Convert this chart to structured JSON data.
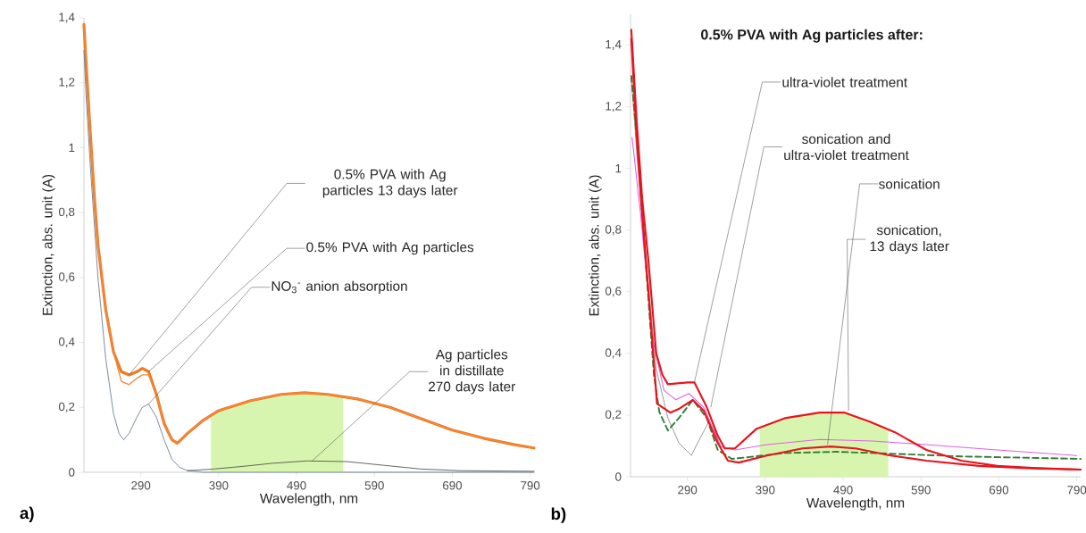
{
  "chart_data": [
    {
      "type": "line",
      "xlabel": "Wavelength, nm",
      "ylabel": "Extinction, abs. unit (A)",
      "xlim": [
        217,
        795
      ],
      "ylim": [
        0,
        1.4
      ],
      "xticks": [
        290,
        390,
        490,
        590,
        690,
        790
      ],
      "yticks": [
        0,
        {
          "value": 0.2,
          "label": "0,2"
        },
        {
          "value": 0.4,
          "label": "0,4"
        },
        {
          "value": 0.6,
          "label": "0,6"
        },
        {
          "value": 0.8,
          "label": "0,8"
        },
        1,
        {
          "value": 1.2,
          "label": "1,2"
        },
        {
          "value": 1.4,
          "label": "1,4"
        }
      ],
      "series": [
        {
          "type": "area",
          "color": "#d8f5b0",
          "x": [
            380,
            390,
            430,
            470,
            500,
            530,
            550
          ],
          "values": [
            0.18,
            0.19,
            0.22,
            0.24,
            0.245,
            0.24,
            0.235
          ]
        },
        {
          "color": "#f07a20",
          "x": [
            217,
            220,
            225,
            230,
            235,
            245,
            255,
            265,
            275,
            285,
            292,
            300,
            310,
            320,
            330,
            337,
            350,
            370,
            390,
            430,
            470,
            500,
            530,
            570,
            610,
            650,
            690,
            730,
            770,
            795
          ],
          "values": [
            1.38,
            1.25,
            1.05,
            0.86,
            0.7,
            0.5,
            0.37,
            0.31,
            0.3,
            0.31,
            0.32,
            0.31,
            0.24,
            0.15,
            0.1,
            0.09,
            0.12,
            0.16,
            0.19,
            0.22,
            0.24,
            0.245,
            0.24,
            0.225,
            0.2,
            0.165,
            0.13,
            0.105,
            0.085,
            0.075
          ]
        },
        {
          "color": "#f08a40",
          "x": [
            217,
            220,
            225,
            230,
            235,
            245,
            255,
            265,
            275,
            285,
            292,
            300,
            310,
            320,
            330,
            337,
            350,
            370,
            390,
            430,
            470,
            500,
            530,
            570,
            610,
            650,
            690,
            730,
            770,
            795
          ],
          "values": [
            1.38,
            1.25,
            1.05,
            0.86,
            0.7,
            0.5,
            0.37,
            0.28,
            0.27,
            0.29,
            0.3,
            0.3,
            0.24,
            0.15,
            0.1,
            0.09,
            0.12,
            0.16,
            0.19,
            0.22,
            0.24,
            0.245,
            0.24,
            0.225,
            0.2,
            0.165,
            0.13,
            0.105,
            0.085,
            0.075
          ]
        },
        {
          "color": "#5a6e8c",
          "x": [
            217,
            220,
            225,
            235,
            245,
            255,
            262,
            268,
            275,
            285,
            292,
            300,
            310,
            320,
            330,
            340,
            350,
            370,
            795
          ],
          "values": [
            1.3,
            1.15,
            0.95,
            0.6,
            0.35,
            0.18,
            0.12,
            0.1,
            0.12,
            0.17,
            0.2,
            0.21,
            0.17,
            0.1,
            0.04,
            0.015,
            0.005,
            0,
            0
          ]
        },
        {
          "color": "#404040",
          "x": [
            350,
            383,
            420,
            460,
            503,
            555,
            600,
            650,
            700,
            795
          ],
          "values": [
            0.005,
            0.01,
            0.018,
            0.028,
            0.035,
            0.033,
            0.022,
            0.01,
            0.005,
            0.003
          ]
        }
      ],
      "annotations": [
        "0.5% PVA with Ag particles 13 days later",
        {
          "text": "0.5% PVA with Ag particles",
          "x": 300,
          "y": 0.31
        },
        {
          "text": "NO$_{3}$$^{-}$ anion absorption",
          "x": 300,
          "y": 0.21
        },
        {
          "text": "Ag particles in distillate 270 days later",
          "x": 510,
          "y": 0.035
        },
        "a)"
      ]
    },
    {
      "type": "line",
      "title": "0.5% PVA with Ag particles after:",
      "xlabel": "Wavelength, nm",
      "ylabel": "Extinction, abs. unit (A)",
      "xlim": [
        217,
        795
      ],
      "ylim": [
        0,
        1.5
      ],
      "xticks": [
        290,
        390,
        490,
        590,
        690,
        790
      ],
      "yticks": [
        0,
        {
          "value": 0.2,
          "label": "0,2"
        },
        {
          "value": 0.4,
          "label": "0,4"
        },
        {
          "value": 0.6,
          "label": "0,6"
        },
        {
          "value": 0.8,
          "label": "0,8"
        },
        1,
        {
          "value": 1.2,
          "label": "1,2"
        },
        {
          "value": 1.4,
          "label": "1,4"
        }
      ],
      "series": [
        {
          "type": "area",
          "color": "#d8f5b0",
          "x": [
            383,
            415,
            460,
            492,
            524,
            548
          ],
          "values": [
            0.16,
            0.19,
            0.208,
            0.208,
            0.179,
            0.15
          ]
        },
        {
          "color": "#808080",
          "x": [
            218,
            225,
            235,
            250,
            265,
            279,
            295,
            308,
            320,
            330
          ],
          "values": [
            1.3,
            1.05,
            0.75,
            0.35,
            0.19,
            0.11,
            0.069,
            0.133,
            0.19,
            0.11
          ]
        },
        {
          "color": "#e060e0",
          "x": [
            219,
            230,
            245,
            260,
            275,
            292,
            311,
            333,
            351,
            392,
            460,
            528,
            597,
            688,
            790
          ],
          "values": [
            1.1,
            0.85,
            0.45,
            0.28,
            0.25,
            0.27,
            0.225,
            0.098,
            0.087,
            0.104,
            0.121,
            0.116,
            0.104,
            0.087,
            0.069
          ]
        },
        {
          "color": "#2e7d32",
          "line_style": "dashed",
          "x": [
            218,
            225,
            235,
            247,
            254,
            265,
            279,
            297,
            315,
            329,
            347,
            370,
            415,
            483,
            551,
            642,
            795
          ],
          "values": [
            1.3,
            1.1,
            0.75,
            0.33,
            0.21,
            0.15,
            0.19,
            0.249,
            0.19,
            0.087,
            0.058,
            0.064,
            0.077,
            0.081,
            0.075,
            0.066,
            0.058
          ]
        },
        {
          "color": "#e8141c",
          "x": [
            218,
            225,
            232,
            240,
            250,
            258,
            265,
            290,
            299,
            315,
            329,
            338,
            351,
            379,
            415,
            460,
            492,
            524,
            556,
            597,
            642,
            688,
            733,
            795
          ],
          "values": [
            1.45,
            1.15,
            0.9,
            0.7,
            0.4,
            0.33,
            0.3,
            0.306,
            0.306,
            0.225,
            0.133,
            0.092,
            0.092,
            0.156,
            0.19,
            0.208,
            0.208,
            0.179,
            0.145,
            0.087,
            0.052,
            0.035,
            0.029,
            0.023
          ]
        },
        {
          "color": "#e8141c",
          "x": [
            218,
            225,
            232,
            240,
            251,
            268,
            279,
            297,
            311,
            329,
            342,
            356,
            392,
            438,
            474,
            506,
            551,
            597,
            665,
            733,
            795
          ],
          "values": [
            1.42,
            1.1,
            0.85,
            0.6,
            0.237,
            0.208,
            0.22,
            0.249,
            0.214,
            0.11,
            0.052,
            0.046,
            0.069,
            0.092,
            0.098,
            0.092,
            0.069,
            0.052,
            0.035,
            0.027,
            0.023
          ]
        }
      ],
      "annotations": [
        {
          "text": "ultra-violet treatment",
          "x": 299,
          "y": 0.306
        },
        {
          "text": "sonication and ultra-violet treatment",
          "x": 320,
          "y": 0.225
        },
        {
          "text": "sonication",
          "x": 470,
          "y": 0.104
        },
        {
          "text": "sonication, 13 days later",
          "x": 497,
          "y": 0.214
        },
        "b)"
      ]
    }
  ]
}
